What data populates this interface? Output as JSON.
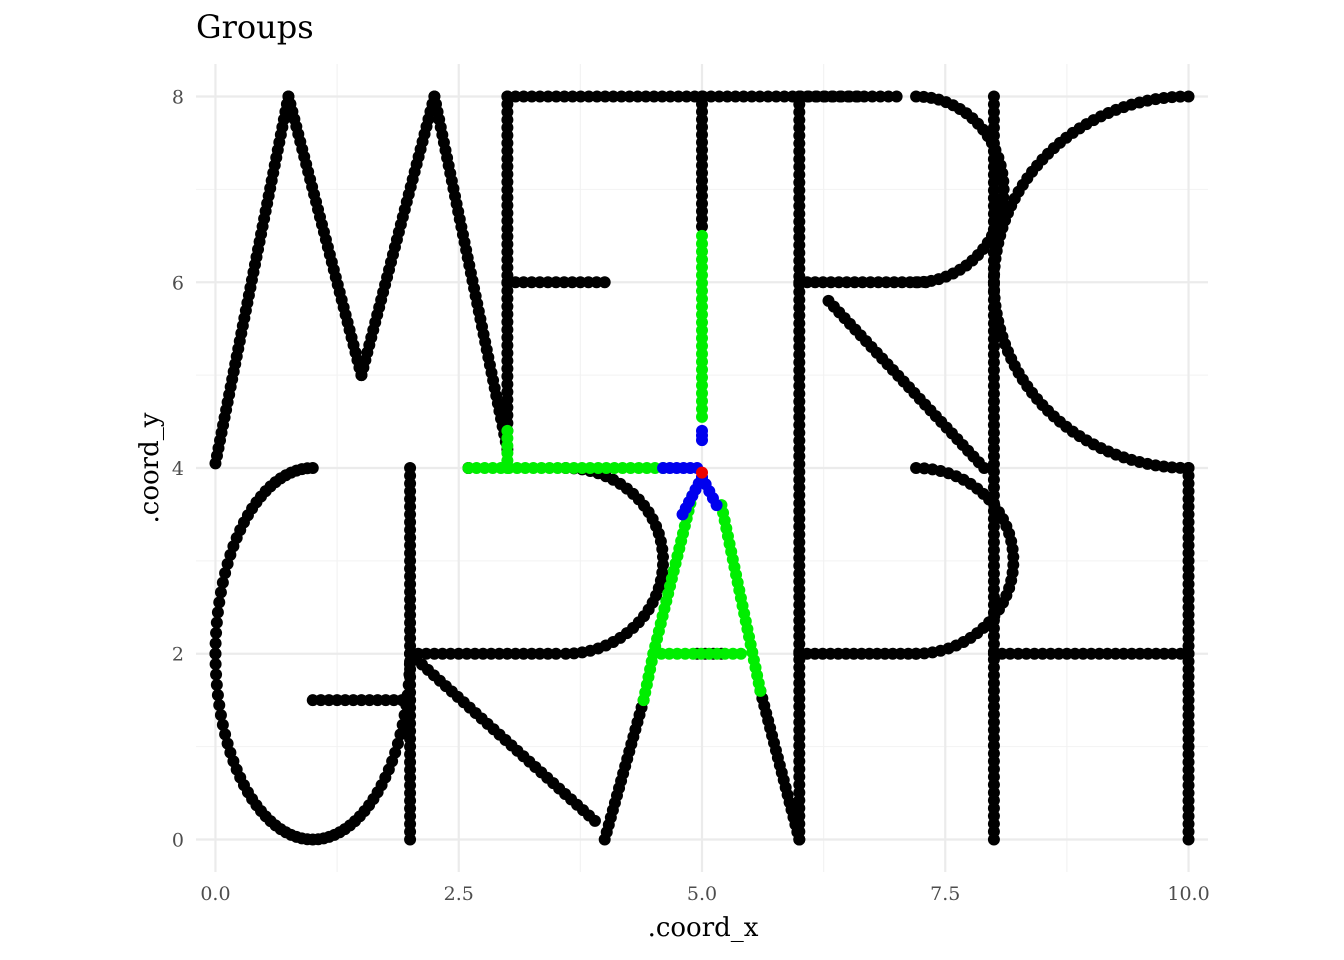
{
  "chart_data": {
    "type": "scatter",
    "title": "Groups",
    "xlabel": ".coord_x",
    "ylabel": ".coord_y",
    "xlim": [
      -0.2,
      10.2
    ],
    "ylim": [
      -0.35,
      8.35
    ],
    "x_ticks": [
      0,
      2.5,
      5,
      7.5,
      10
    ],
    "x_tick_labels": [
      "0.0",
      "2.5",
      "5.0",
      "7.5",
      "10.0"
    ],
    "y_ticks": [
      0,
      2,
      4,
      6,
      8
    ],
    "y_tick_labels": [
      "0",
      "2",
      "4",
      "6",
      "8"
    ],
    "grid": true,
    "legend": "none",
    "colors": {
      "base": "#000000",
      "green": "#00ee00",
      "blue": "#0000ee",
      "red": "#ee0000"
    },
    "series": [
      {
        "color": "#000000",
        "segments": [
          [
            [
              0,
              4.05
            ],
            [
              0.75,
              8.0
            ]
          ],
          [
            [
              0.75,
              8.0
            ],
            [
              1.5,
              5.0
            ]
          ],
          [
            [
              1.5,
              5.0
            ],
            [
              2.25,
              8.0
            ]
          ],
          [
            [
              2.25,
              8.0
            ],
            [
              3.0,
              4.2
            ]
          ],
          [
            [
              3.0,
              8.0
            ],
            [
              3.0,
              4.4
            ]
          ],
          [
            [
              3.0,
              8.0
            ],
            [
              6.6,
              8.0
            ]
          ],
          [
            [
              3.0,
              6.0
            ],
            [
              4.0,
              6.0
            ]
          ],
          [
            [
              5.0,
              8.0
            ],
            [
              5.0,
              6.6
            ]
          ],
          [
            [
              6.0,
              8.0
            ],
            [
              6.0,
              0.0
            ]
          ],
          [
            [
              6.0,
              8.0
            ],
            [
              7.0,
              8.0
            ]
          ],
          [
            [
              6.0,
              6.0
            ],
            [
              7.3,
              6.0
            ]
          ],
          [
            [
              6.3,
              5.8
            ],
            [
              7.9,
              4.0
            ]
          ],
          [
            [
              2.6,
              4.0
            ],
            [
              2.6,
              4.0
            ]
          ],
          [
            [
              8.0,
              8.0
            ],
            [
              8.0,
              0.0
            ]
          ],
          [
            [
              8.0,
              2.0
            ],
            [
              10.0,
              2.0
            ]
          ],
          [
            [
              10.0,
              4.0
            ],
            [
              10.0,
              0.0
            ]
          ],
          [
            [
              1.0,
              1.5
            ],
            [
              2.0,
              1.5
            ]
          ],
          [
            [
              2.0,
              4.0
            ],
            [
              2.0,
              0.0
            ]
          ],
          [
            [
              2.0,
              2.0
            ],
            [
              3.5,
              2.0
            ]
          ],
          [
            [
              2.0,
              2.0
            ],
            [
              3.9,
              0.2
            ]
          ],
          [
            [
              4.0,
              0.0
            ],
            [
              4.4,
              1.5
            ]
          ],
          [
            [
              5.2,
              2.0
            ],
            [
              4.95,
              2.0
            ]
          ],
          [
            [
              5.6,
              1.6
            ],
            [
              6.0,
              0.0
            ]
          ],
          [
            [
              6.0,
              2.0
            ],
            [
              7.2,
              2.0
            ]
          ]
        ],
        "arcs": [
          {
            "cx": 1.0,
            "cy": 2.0,
            "rx": 1.0,
            "ry": 2.0,
            "from": 0.5,
            "to": 1.0
          },
          {
            "cx": 1.0,
            "cy": 2.0,
            "rx": 1.0,
            "ry": 2.0,
            "from": 1.0,
            "to": 2.0
          },
          {
            "cx": 1.0,
            "cy": 4.0,
            "rx": 1.0,
            "ry": 0.0,
            "from": 0.0,
            "to": 0.0
          },
          {
            "cx": 1.9,
            "cy": 2.0,
            "rx": 0.0,
            "ry": 0.0,
            "from": 0.0,
            "to": 0.0
          },
          {
            "cx": 3.6,
            "cy": 3.0,
            "rx": 1.0,
            "ry": 1.0,
            "from": -0.5,
            "to": 0.5
          },
          {
            "cx": 7.2,
            "cy": 3.0,
            "rx": 1.0,
            "ry": 1.0,
            "from": -0.5,
            "to": 0.5
          },
          {
            "cx": 7.2,
            "cy": 7.0,
            "rx": 0.9,
            "ry": 1.0,
            "from": -0.5,
            "to": 0.5
          },
          {
            "cx": 10.0,
            "cy": 6.0,
            "rx": 2.0,
            "ry": 2.0,
            "from": 0.5,
            "to": 1.0
          },
          {
            "cx": 10.0,
            "cy": 6.0,
            "rx": 2.0,
            "ry": 2.0,
            "from": 1.0,
            "to": 1.5
          }
        ]
      },
      {
        "color": "#00ee00",
        "segments": [
          [
            [
              5.0,
              6.5
            ],
            [
              5.0,
              4.55
            ]
          ],
          [
            [
              2.6,
              4.0
            ],
            [
              4.6,
              4.0
            ]
          ],
          [
            [
              3.0,
              4.4
            ],
            [
              3.0,
              4.0
            ]
          ],
          [
            [
              4.9,
              3.7
            ],
            [
              4.5,
              2.0
            ]
          ],
          [
            [
              5.2,
              3.6
            ],
            [
              5.6,
              1.6
            ]
          ],
          [
            [
              4.5,
              2.0
            ],
            [
              5.4,
              2.0
            ]
          ],
          [
            [
              4.5,
              2.0
            ],
            [
              4.4,
              1.5
            ]
          ]
        ]
      },
      {
        "color": "#0000ee",
        "segments": [
          [
            [
              5.0,
              4.4
            ],
            [
              5.0,
              4.3
            ]
          ],
          [
            [
              4.6,
              4.0
            ],
            [
              4.95,
              4.0
            ]
          ],
          [
            [
              5.0,
              3.9
            ],
            [
              4.8,
              3.5
            ]
          ],
          [
            [
              5.0,
              3.9
            ],
            [
              5.15,
              3.6
            ]
          ]
        ]
      },
      {
        "color": "#ee0000",
        "points": [
          [
            5.0,
            3.95
          ]
        ]
      }
    ]
  }
}
